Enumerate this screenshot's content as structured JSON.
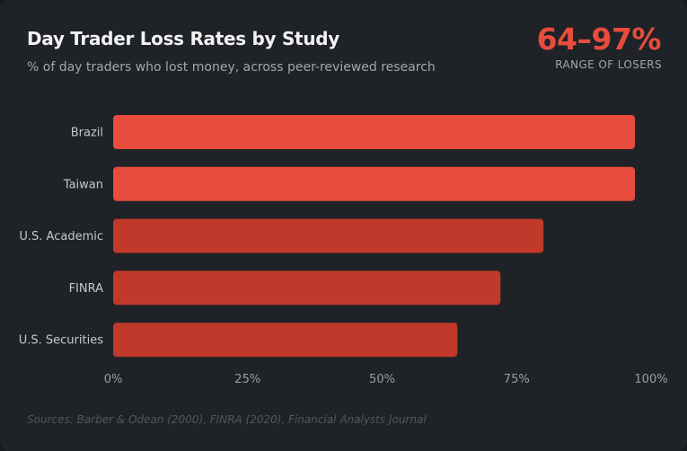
{
  "header": {
    "title": "Day Trader Loss Rates by Study",
    "subtitle": "% of day traders who lost money, across peer-reviewed research"
  },
  "stat": {
    "value": "64–97%",
    "label": "RANGE OF LOSERS"
  },
  "chart_data": {
    "type": "bar",
    "orientation": "horizontal",
    "title": "Day Trader Loss Rates by Study",
    "subtitle": "% of day traders who lost money, across peer-reviewed research",
    "categories": [
      "Brazil",
      "Taiwan",
      "U.S. Academic",
      "FINRA",
      "U.S. Securities"
    ],
    "values": [
      97,
      97,
      80,
      72,
      64
    ],
    "bar_colors": [
      "#e84c3d",
      "#e84c3d",
      "#c0392b",
      "#c0392b",
      "#c0392b"
    ],
    "xlim": [
      0,
      100
    ],
    "xticks": [
      0,
      25,
      50,
      75,
      100
    ],
    "xtick_labels": [
      "0%",
      "25%",
      "50%",
      "75%",
      "100%"
    ],
    "xlabel": "",
    "ylabel": "",
    "grid": false
  },
  "footer": {
    "source": "Sources: Barber & Odean (2000), FINRA (2020), Financial Analysts Journal"
  }
}
